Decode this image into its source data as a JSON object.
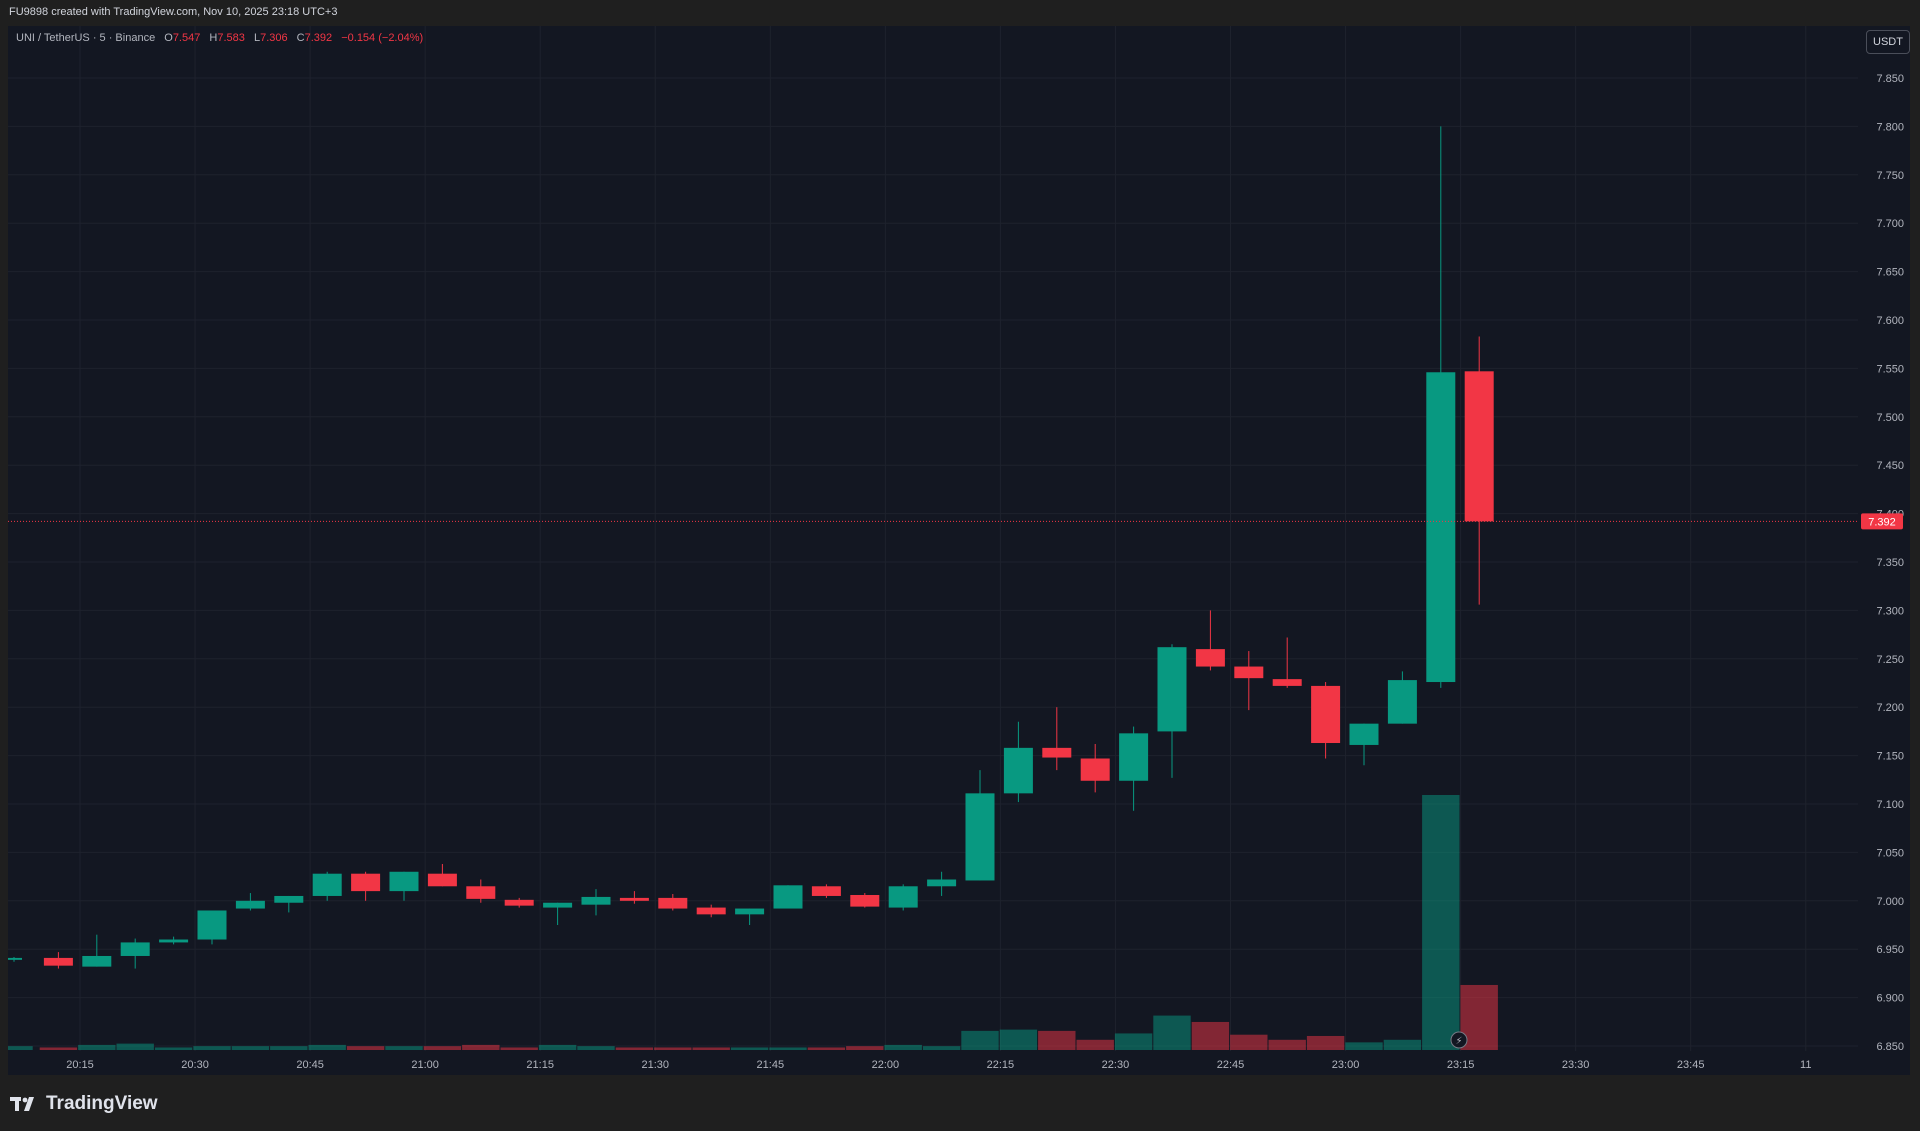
{
  "header": {
    "credit": "FU9898 created with TradingView.com, Nov 10, 2025 23:18 UTC+3"
  },
  "legend": {
    "symbol": "UNI / TetherUS · 5 · Binance",
    "o_label": "O",
    "o": "7.547",
    "h_label": "H",
    "h": "7.583",
    "l_label": "L",
    "l": "7.306",
    "c_label": "C",
    "c": "7.392",
    "change": "−0.154 (−2.04%)"
  },
  "currency_button": "USDT",
  "footer": {
    "brand": "TradingView"
  },
  "colors": {
    "up": "#089981",
    "down": "#f23645",
    "background": "#131722",
    "grid": "#1e222d",
    "text": "#b2b5be"
  },
  "chart_data": {
    "type": "candlestick",
    "x_ticks": [
      "20:15",
      "20:30",
      "20:45",
      "21:00",
      "21:15",
      "21:30",
      "21:45",
      "22:00",
      "22:15",
      "22:30",
      "22:45",
      "23:00",
      "23:15",
      "23:30",
      "23:45",
      "11"
    ],
    "y_ticks": [
      "6.850",
      "6.900",
      "6.950",
      "7.000",
      "7.050",
      "7.100",
      "7.150",
      "7.200",
      "7.250",
      "7.300",
      "7.350",
      "7.400",
      "7.450",
      "7.500",
      "7.550",
      "7.600",
      "7.650",
      "7.700",
      "7.750",
      "7.800",
      "7.850"
    ],
    "ylim": [
      6.85,
      7.85
    ],
    "last_price": "7.392",
    "series": [
      {
        "t": "20:05",
        "o": 6.939,
        "h": 6.942,
        "l": 6.937,
        "c": 6.941,
        "v": 3
      },
      {
        "t": "20:10",
        "o": 6.941,
        "h": 6.947,
        "l": 6.93,
        "c": 6.933,
        "v": 2
      },
      {
        "t": "20:15",
        "o": 6.932,
        "h": 6.965,
        "l": 6.932,
        "c": 6.943,
        "v": 4
      },
      {
        "t": "20:20",
        "o": 6.943,
        "h": 6.961,
        "l": 6.93,
        "c": 6.957,
        "v": 5
      },
      {
        "t": "20:25",
        "o": 6.957,
        "h": 6.963,
        "l": 6.955,
        "c": 6.96,
        "v": 2
      },
      {
        "t": "20:30",
        "o": 6.96,
        "h": 6.99,
        "l": 6.955,
        "c": 6.99,
        "v": 3
      },
      {
        "t": "20:35",
        "o": 6.992,
        "h": 7.008,
        "l": 6.99,
        "c": 7.0,
        "v": 3
      },
      {
        "t": "20:40",
        "o": 6.998,
        "h": 7.005,
        "l": 6.988,
        "c": 7.005,
        "v": 3
      },
      {
        "t": "20:45",
        "o": 7.005,
        "h": 7.03,
        "l": 7.0,
        "c": 7.028,
        "v": 4
      },
      {
        "t": "20:50",
        "o": 7.028,
        "h": 7.03,
        "l": 7.0,
        "c": 7.01,
        "v": 3
      },
      {
        "t": "20:55",
        "o": 7.01,
        "h": 7.03,
        "l": 7.0,
        "c": 7.03,
        "v": 3
      },
      {
        "t": "21:00",
        "o": 7.028,
        "h": 7.038,
        "l": 7.015,
        "c": 7.015,
        "v": 3
      },
      {
        "t": "21:05",
        "o": 7.015,
        "h": 7.022,
        "l": 6.998,
        "c": 7.002,
        "v": 4
      },
      {
        "t": "21:10",
        "o": 7.001,
        "h": 7.003,
        "l": 6.993,
        "c": 6.995,
        "v": 2
      },
      {
        "t": "21:15",
        "o": 6.993,
        "h": 6.998,
        "l": 6.975,
        "c": 6.998,
        "v": 4
      },
      {
        "t": "21:20",
        "o": 6.996,
        "h": 7.012,
        "l": 6.985,
        "c": 7.004,
        "v": 3
      },
      {
        "t": "21:25",
        "o": 7.003,
        "h": 7.01,
        "l": 6.997,
        "c": 7.0,
        "v": 2
      },
      {
        "t": "21:30",
        "o": 7.003,
        "h": 7.007,
        "l": 6.99,
        "c": 6.992,
        "v": 2
      },
      {
        "t": "21:35",
        "o": 6.993,
        "h": 6.996,
        "l": 6.983,
        "c": 6.986,
        "v": 2
      },
      {
        "t": "21:40",
        "o": 6.986,
        "h": 6.992,
        "l": 6.975,
        "c": 6.992,
        "v": 2
      },
      {
        "t": "21:45",
        "o": 6.992,
        "h": 7.016,
        "l": 6.992,
        "c": 7.016,
        "v": 2
      },
      {
        "t": "21:50",
        "o": 7.015,
        "h": 7.017,
        "l": 7.003,
        "c": 7.005,
        "v": 2
      },
      {
        "t": "21:55",
        "o": 7.006,
        "h": 7.008,
        "l": 6.993,
        "c": 6.994,
        "v": 3
      },
      {
        "t": "22:00",
        "o": 6.993,
        "h": 7.017,
        "l": 6.99,
        "c": 7.015,
        "v": 4
      },
      {
        "t": "22:05",
        "o": 7.015,
        "h": 7.03,
        "l": 7.005,
        "c": 7.022,
        "v": 3
      },
      {
        "t": "22:10",
        "o": 7.021,
        "h": 7.135,
        "l": 7.021,
        "c": 7.111,
        "v": 15
      },
      {
        "t": "22:15",
        "o": 7.111,
        "h": 7.185,
        "l": 7.102,
        "c": 7.158,
        "v": 16
      },
      {
        "t": "22:20",
        "o": 7.158,
        "h": 7.2,
        "l": 7.135,
        "c": 7.148,
        "v": 15
      },
      {
        "t": "22:25",
        "o": 7.147,
        "h": 7.162,
        "l": 7.112,
        "c": 7.124,
        "v": 8
      },
      {
        "t": "22:30",
        "o": 7.124,
        "h": 7.18,
        "l": 7.093,
        "c": 7.173,
        "v": 13
      },
      {
        "t": "22:35",
        "o": 7.175,
        "h": 7.265,
        "l": 7.127,
        "c": 7.262,
        "v": 27
      },
      {
        "t": "22:40",
        "o": 7.26,
        "h": 7.3,
        "l": 7.238,
        "c": 7.242,
        "v": 22
      },
      {
        "t": "22:45",
        "o": 7.242,
        "h": 7.258,
        "l": 7.197,
        "c": 7.23,
        "v": 12
      },
      {
        "t": "22:50",
        "o": 7.229,
        "h": 7.272,
        "l": 7.22,
        "c": 7.222,
        "v": 8
      },
      {
        "t": "22:55",
        "o": 7.222,
        "h": 7.226,
        "l": 7.147,
        "c": 7.163,
        "v": 11
      },
      {
        "t": "23:00",
        "o": 7.161,
        "h": 7.183,
        "l": 7.14,
        "c": 7.183,
        "v": 6
      },
      {
        "t": "23:05",
        "o": 7.183,
        "h": 7.237,
        "l": 7.183,
        "c": 7.228,
        "v": 8
      },
      {
        "t": "23:10",
        "o": 7.226,
        "h": 7.8,
        "l": 7.22,
        "c": 7.546,
        "v": 200
      },
      {
        "t": "23:15",
        "o": 7.547,
        "h": 7.583,
        "l": 7.306,
        "c": 7.392,
        "v": 51
      }
    ]
  }
}
